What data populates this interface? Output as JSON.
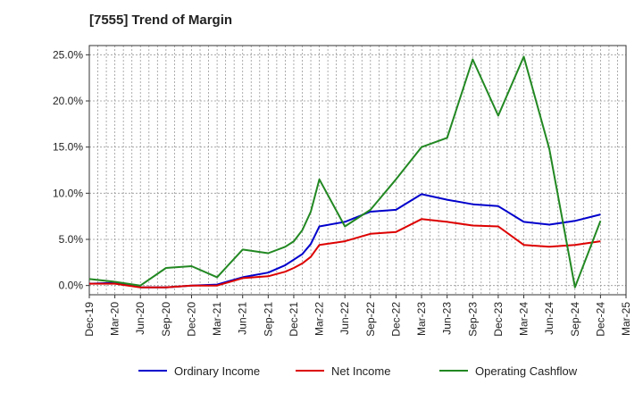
{
  "header": {
    "title": "[7555]  Trend of Margin"
  },
  "chart_data": {
    "type": "line",
    "title": "[7555]  Trend of Margin",
    "xlabel": "",
    "ylabel": "",
    "x": [
      "2019-12",
      "2020-03",
      "2020-06",
      "2020-09",
      "2020-12",
      "2021-03",
      "2021-06",
      "2021-09",
      "2021-11",
      "2021-12",
      "2022-01",
      "2022-02",
      "2022-03",
      "2022-06",
      "2022-09",
      "2022-12",
      "2023-03",
      "2023-06",
      "2023-09",
      "2023-12",
      "2024-03",
      "2024-06",
      "2024-09",
      "2024-12"
    ],
    "x_ticks": [
      "Dec-19",
      "Mar-20",
      "Jun-20",
      "Sep-20",
      "Dec-20",
      "Mar-21",
      "Jun-21",
      "Sep-21",
      "Dec-21",
      "Mar-22",
      "Jun-22",
      "Sep-22",
      "Dec-22",
      "Mar-23",
      "Jun-23",
      "Sep-23",
      "Dec-23",
      "Mar-24",
      "Jun-24",
      "Sep-24",
      "Dec-24",
      "Mar-25"
    ],
    "y_ticks": [
      "0.0%",
      "5.0%",
      "10.0%",
      "15.0%",
      "20.0%",
      "25.0%"
    ],
    "ylim": [
      -1.0,
      26.0
    ],
    "grid": true,
    "legend_position": "bottom",
    "series": [
      {
        "name": "Ordinary Income",
        "color": "#0000cc",
        "points": [
          [
            "2019-12",
            0.2
          ],
          [
            "2020-03",
            0.3
          ],
          [
            "2020-06",
            -0.2
          ],
          [
            "2020-09",
            -0.2
          ],
          [
            "2020-12",
            0.0
          ],
          [
            "2021-03",
            0.1
          ],
          [
            "2021-06",
            0.9
          ],
          [
            "2021-09",
            1.4
          ],
          [
            "2021-11",
            2.2
          ],
          [
            "2021-12",
            2.8
          ],
          [
            "2022-01",
            3.4
          ],
          [
            "2022-02",
            4.5
          ],
          [
            "2022-03",
            6.4
          ],
          [
            "2022-06",
            6.9
          ],
          [
            "2022-09",
            8.0
          ],
          [
            "2022-12",
            8.2
          ],
          [
            "2023-03",
            9.9
          ],
          [
            "2023-06",
            9.3
          ],
          [
            "2023-09",
            8.8
          ],
          [
            "2023-12",
            8.6
          ],
          [
            "2024-03",
            6.9
          ],
          [
            "2024-06",
            6.6
          ],
          [
            "2024-09",
            7.0
          ],
          [
            "2024-12",
            7.7
          ]
        ]
      },
      {
        "name": "Net Income",
        "color": "#dd0000",
        "points": [
          [
            "2019-12",
            0.2
          ],
          [
            "2020-03",
            0.2
          ],
          [
            "2020-06",
            -0.2
          ],
          [
            "2020-09",
            -0.2
          ],
          [
            "2020-12",
            0.0
          ],
          [
            "2021-03",
            0.0
          ],
          [
            "2021-06",
            0.8
          ],
          [
            "2021-09",
            1.0
          ],
          [
            "2021-11",
            1.5
          ],
          [
            "2021-12",
            1.9
          ],
          [
            "2022-01",
            2.4
          ],
          [
            "2022-02",
            3.1
          ],
          [
            "2022-03",
            4.4
          ],
          [
            "2022-06",
            4.8
          ],
          [
            "2022-09",
            5.6
          ],
          [
            "2022-12",
            5.8
          ],
          [
            "2023-03",
            7.2
          ],
          [
            "2023-06",
            6.9
          ],
          [
            "2023-09",
            6.5
          ],
          [
            "2023-12",
            6.4
          ],
          [
            "2024-03",
            4.4
          ],
          [
            "2024-06",
            4.2
          ],
          [
            "2024-09",
            4.4
          ],
          [
            "2024-12",
            4.8
          ]
        ]
      },
      {
        "name": "Operating Cashflow",
        "color": "#228822",
        "points": [
          [
            "2019-12",
            0.7
          ],
          [
            "2020-03",
            0.4
          ],
          [
            "2020-06",
            0.0
          ],
          [
            "2020-09",
            1.9
          ],
          [
            "2020-12",
            2.1
          ],
          [
            "2021-03",
            0.9
          ],
          [
            "2021-06",
            3.9
          ],
          [
            "2021-09",
            3.5
          ],
          [
            "2021-11",
            4.2
          ],
          [
            "2021-12",
            4.8
          ],
          [
            "2022-01",
            6.0
          ],
          [
            "2022-02",
            8.0
          ],
          [
            "2022-03",
            11.5
          ],
          [
            "2022-06",
            6.4
          ],
          [
            "2022-09",
            8.2
          ],
          [
            "2022-12",
            11.5
          ],
          [
            "2023-03",
            15.0
          ],
          [
            "2023-06",
            16.0
          ],
          [
            "2023-09",
            24.5
          ],
          [
            "2023-12",
            18.4
          ],
          [
            "2024-03",
            24.8
          ],
          [
            "2024-06",
            14.8
          ],
          [
            "2024-09",
            -0.2
          ],
          [
            "2024-12",
            7.0
          ]
        ]
      }
    ]
  }
}
